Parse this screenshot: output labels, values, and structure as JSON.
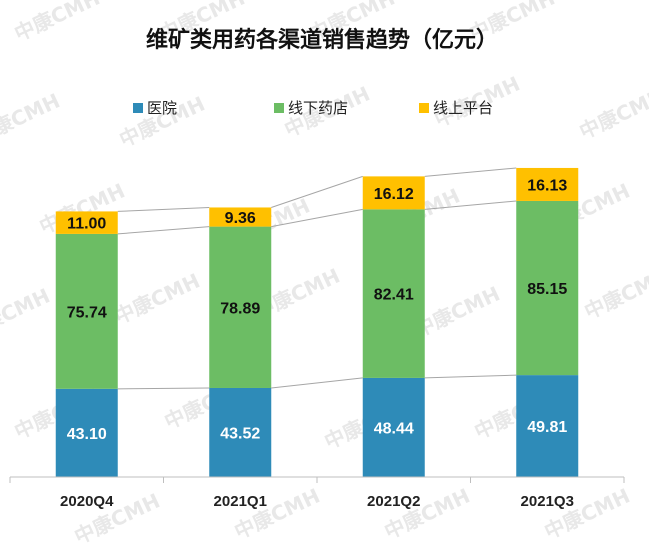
{
  "chart_data": {
    "type": "bar",
    "stacked": true,
    "title": "维矿类用药各渠道销售趋势（亿元）",
    "categories": [
      "2020Q4",
      "2021Q1",
      "2021Q2",
      "2021Q3"
    ],
    "series": [
      {
        "name": "医院",
        "color": "#2e8bb8",
        "values": [
          43.1,
          43.52,
          48.44,
          49.81
        ],
        "labels": [
          "43.10",
          "43.52",
          "48.44",
          "49.81"
        ]
      },
      {
        "name": "线下药店",
        "color": "#6cbd64",
        "values": [
          75.74,
          78.89,
          82.41,
          85.15
        ],
        "labels": [
          "75.74",
          "78.89",
          "82.41",
          "85.15"
        ]
      },
      {
        "name": "线上平台",
        "color": "#ffc000",
        "values": [
          11.0,
          9.36,
          16.12,
          16.13
        ],
        "labels": [
          "11.00",
          "9.36",
          "16.12",
          "16.13"
        ]
      }
    ],
    "ylim": [
      0,
      160
    ],
    "legend_position": "top",
    "grid": false,
    "connector_lines": true,
    "watermark": "中康CMH"
  }
}
